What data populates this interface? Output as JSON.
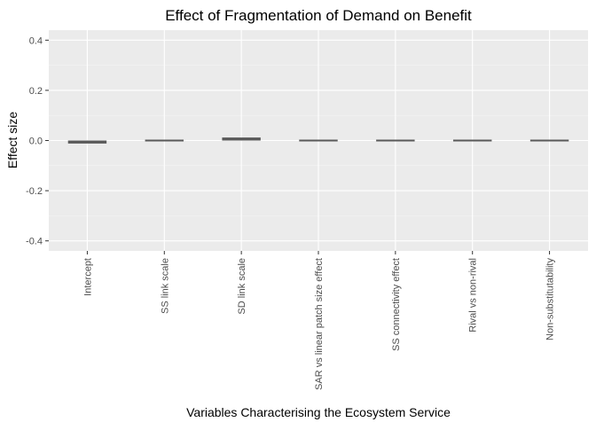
{
  "chart_data": {
    "type": "bar",
    "title": "Effect of Fragmentation of Demand on Benefit",
    "xlabel": "Variables Characterising the Ecosystem Service",
    "ylabel": "Effect size",
    "categories": [
      "Intercept",
      "SS link scale",
      "SD link scale",
      "SAR vs linear patch size effect",
      "SS connectivity effect",
      "Rival vs non-rival",
      "Non-substitutability"
    ],
    "values": [
      -0.012,
      0.002,
      0.012,
      0.002,
      0.002,
      0.004,
      -0.004
    ],
    "ylim": [
      -0.44,
      0.44
    ],
    "yticks": [
      -0.4,
      -0.2,
      0.0,
      0.2,
      0.4
    ],
    "ytick_labels": [
      "-0.4",
      "-0.2",
      "0.0",
      "0.2",
      "0.4"
    ],
    "grid": true,
    "legend": "none",
    "colors": {
      "panel_background": "#ebebeb",
      "grid_major": "#ffffff",
      "grid_minor": "#f5f5f5",
      "bar_fill": "#595959",
      "tick_mark": "#333333"
    }
  }
}
